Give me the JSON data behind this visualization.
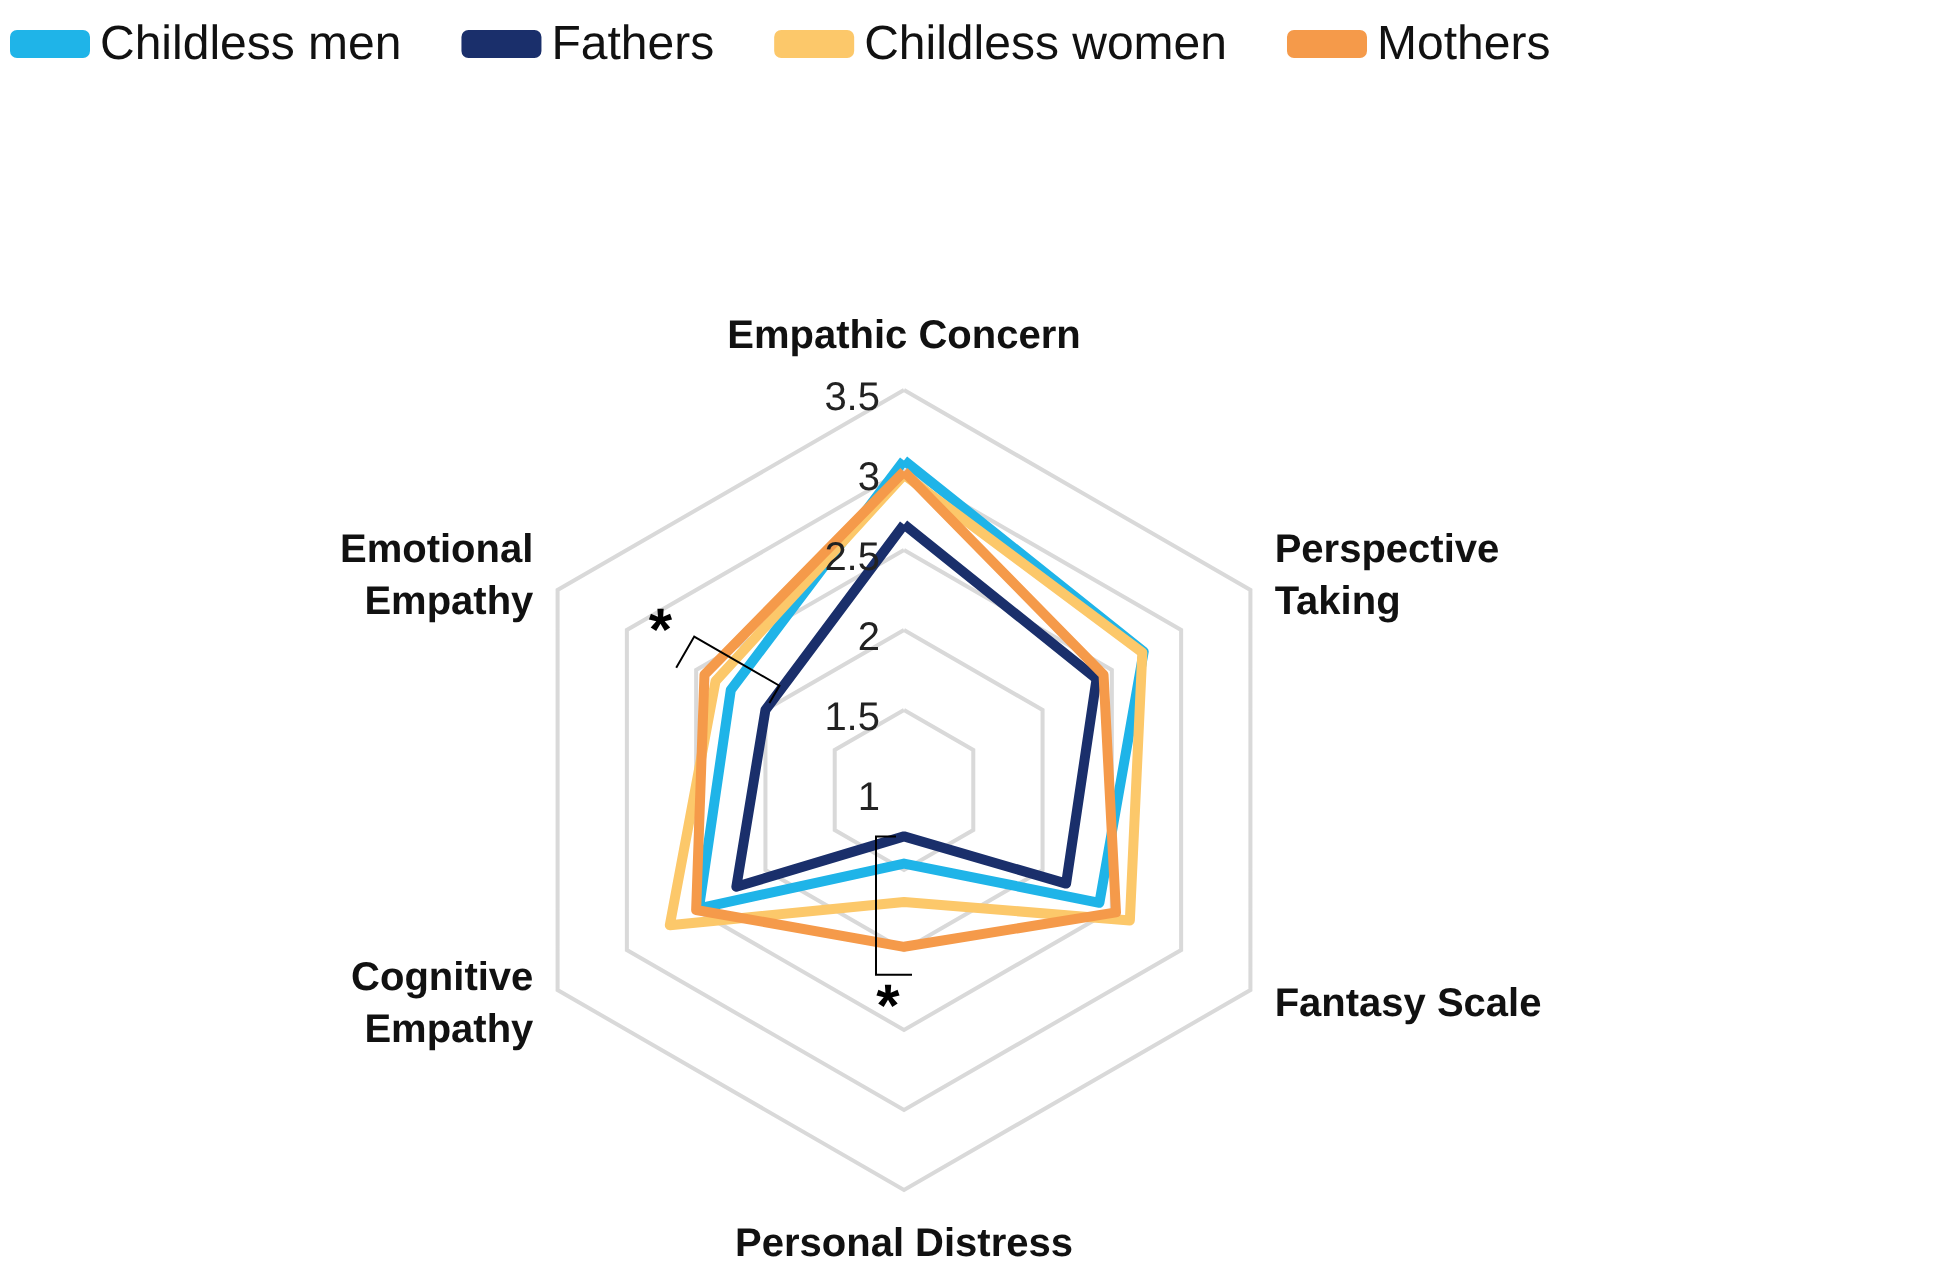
{
  "chart_data": {
    "type": "radar",
    "categories": [
      "Empathic Concern",
      "Perspective\nTaking",
      "Fantasy Scale",
      "Personal Distress",
      "Cognitive\nEmpathy",
      "Emotional\nEmpathy"
    ],
    "series": [
      {
        "name": "Childless men",
        "color": "#1fb4e8",
        "values": [
          3.06,
          2.73,
          2.41,
          1.46,
          2.48,
          2.25
        ]
      },
      {
        "name": "Fathers",
        "color": "#1a2f6b",
        "values": [
          2.66,
          2.39,
          2.17,
          1.29,
          2.21,
          2.0
        ]
      },
      {
        "name": "Childless women",
        "color": "#fcc86a",
        "values": [
          2.97,
          2.72,
          2.63,
          1.7,
          2.69,
          2.36
        ]
      },
      {
        "name": "Mothers",
        "color": "#f59a4a",
        "values": [
          2.99,
          2.44,
          2.53,
          1.98,
          2.5,
          2.44
        ]
      }
    ],
    "ylim": [
      1,
      3.5
    ],
    "yticks": [
      1,
      1.5,
      2,
      2.5,
      3,
      3.5
    ],
    "legend": "top left",
    "marker": "none",
    "line_style": "solid",
    "annotations": [
      {
        "text": "*",
        "x": "Emotional\nEmpathy"
      },
      {
        "text": "*",
        "x": "Personal Distress"
      }
    ]
  }
}
